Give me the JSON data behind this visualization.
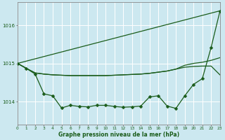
{
  "title": "Graphe pression niveau de la mer (hPa)",
  "bg_color": "#cce8f0",
  "grid_color": "#ffffff",
  "line_color": "#1a5c1a",
  "xlim": [
    0,
    23
  ],
  "ylim": [
    1013.4,
    1016.6
  ],
  "yticks": [
    1014,
    1015,
    1016
  ],
  "xticks": [
    0,
    1,
    2,
    3,
    4,
    5,
    6,
    7,
    8,
    9,
    10,
    11,
    12,
    13,
    14,
    15,
    16,
    17,
    18,
    19,
    20,
    21,
    22,
    23
  ],
  "line_diagonal": {
    "x": [
      0,
      23
    ],
    "y": [
      1015.0,
      1016.38
    ]
  },
  "line_flat1": [
    1015.0,
    1014.87,
    1014.75,
    1014.72,
    1014.7,
    1014.69,
    1014.68,
    1014.68,
    1014.68,
    1014.68,
    1014.68,
    1014.69,
    1014.7,
    1014.71,
    1014.72,
    1014.74,
    1014.77,
    1014.8,
    1014.85,
    1014.95,
    1015.0,
    1015.03,
    1015.08,
    1015.15
  ],
  "line_flat2": [
    1015.0,
    1014.87,
    1014.75,
    1014.72,
    1014.7,
    1014.69,
    1014.68,
    1014.68,
    1014.68,
    1014.68,
    1014.68,
    1014.69,
    1014.7,
    1014.71,
    1014.72,
    1014.74,
    1014.77,
    1014.8,
    1014.85,
    1014.9,
    1014.92,
    1014.93,
    1014.93,
    1014.7
  ],
  "line_markers": [
    1015.0,
    1014.87,
    1014.72,
    1014.2,
    1014.15,
    1013.83,
    1013.9,
    1013.87,
    1013.86,
    1013.9,
    1013.9,
    1013.87,
    1013.85,
    1013.86,
    1013.88,
    1014.12,
    1014.15,
    1013.88,
    1013.82,
    1014.15,
    1014.45,
    1014.6,
    1015.42,
    1016.37
  ]
}
